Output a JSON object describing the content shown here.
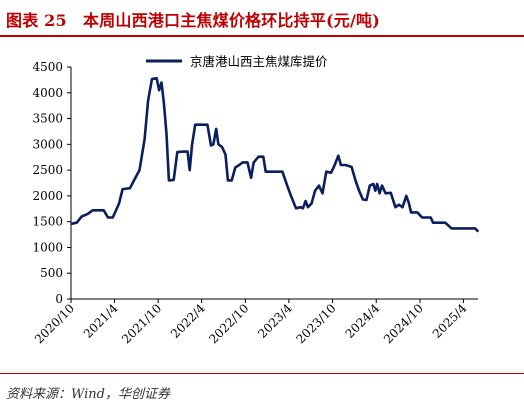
{
  "title": "图表 25　本周山西港口主焦煤价格环比持平(元/吨)",
  "source": "资料来源：Wind，华创证券",
  "colors": {
    "accent": "#c00000",
    "series": "#0b1f5e"
  },
  "chart_data": {
    "type": "line",
    "title": "本周山西港口主焦煤价格环比持平(元/吨)",
    "xlabel": "",
    "ylabel": "",
    "ylim": [
      0,
      4500
    ],
    "yticks": [
      0,
      500,
      1000,
      1500,
      2000,
      2500,
      3000,
      3500,
      4000,
      4500
    ],
    "xlim": [
      "2020-10",
      "2025-06"
    ],
    "xticks": [
      "2020/10",
      "2021/4",
      "2021/10",
      "2022/4",
      "2022/10",
      "2023/4",
      "2023/10",
      "2024/4",
      "2024/10",
      "2025/4"
    ],
    "legend_position": "top",
    "grid": false,
    "series": [
      {
        "name": "京唐港山西主焦煤库提价",
        "points": [
          [
            "2020-10-05",
            1460
          ],
          [
            "2020-10-25",
            1480
          ],
          [
            "2020-11-15",
            1600
          ],
          [
            "2020-12-10",
            1650
          ],
          [
            "2020-12-31",
            1720
          ],
          [
            "2021-02-15",
            1720
          ],
          [
            "2021-03-05",
            1580
          ],
          [
            "2021-03-25",
            1580
          ],
          [
            "2021-04-20",
            1850
          ],
          [
            "2021-05-05",
            2130
          ],
          [
            "2021-06-05",
            2150
          ],
          [
            "2021-06-25",
            2330
          ],
          [
            "2021-07-15",
            2500
          ],
          [
            "2021-08-05",
            3100
          ],
          [
            "2021-08-20",
            3850
          ],
          [
            "2021-09-05",
            4270
          ],
          [
            "2021-09-25",
            4280
          ],
          [
            "2021-10-05",
            4050
          ],
          [
            "2021-10-15",
            4200
          ],
          [
            "2021-10-25",
            3800
          ],
          [
            "2021-11-05",
            3200
          ],
          [
            "2021-11-15",
            2300
          ],
          [
            "2021-12-05",
            2310
          ],
          [
            "2021-12-20",
            2850
          ],
          [
            "2022-01-15",
            2860
          ],
          [
            "2022-02-01",
            2860
          ],
          [
            "2022-02-10",
            2500
          ],
          [
            "2022-02-20",
            3000
          ],
          [
            "2022-03-05",
            3380
          ],
          [
            "2022-04-05",
            3380
          ],
          [
            "2022-04-25",
            3380
          ],
          [
            "2022-05-10",
            2980
          ],
          [
            "2022-05-20",
            3000
          ],
          [
            "2022-06-01",
            3300
          ],
          [
            "2022-06-10",
            3000
          ],
          [
            "2022-06-25",
            2950
          ],
          [
            "2022-07-10",
            2800
          ],
          [
            "2022-07-20",
            2300
          ],
          [
            "2022-08-05",
            2300
          ],
          [
            "2022-08-20",
            2550
          ],
          [
            "2022-09-05",
            2600
          ],
          [
            "2022-09-20",
            2650
          ],
          [
            "2022-10-10",
            2650
          ],
          [
            "2022-10-25",
            2350
          ],
          [
            "2022-11-05",
            2650
          ],
          [
            "2022-11-25",
            2760
          ],
          [
            "2022-12-15",
            2760
          ],
          [
            "2022-12-25",
            2470
          ],
          [
            "2023-01-20",
            2470
          ],
          [
            "2023-02-15",
            2470
          ],
          [
            "2023-03-05",
            2470
          ],
          [
            "2023-03-25",
            2200
          ],
          [
            "2023-04-10",
            2000
          ],
          [
            "2023-05-01",
            1760
          ],
          [
            "2023-05-20",
            1780
          ],
          [
            "2023-05-30",
            1760
          ],
          [
            "2023-06-10",
            1900
          ],
          [
            "2023-06-20",
            1780
          ],
          [
            "2023-07-05",
            1850
          ],
          [
            "2023-07-20",
            2100
          ],
          [
            "2023-08-05",
            2200
          ],
          [
            "2023-08-20",
            2050
          ],
          [
            "2023-09-05",
            2470
          ],
          [
            "2023-09-25",
            2450
          ],
          [
            "2023-10-10",
            2600
          ],
          [
            "2023-10-25",
            2780
          ],
          [
            "2023-11-05",
            2600
          ],
          [
            "2023-11-25",
            2600
          ],
          [
            "2023-12-20",
            2560
          ],
          [
            "2024-01-05",
            2300
          ],
          [
            "2024-01-20",
            2100
          ],
          [
            "2024-02-05",
            1930
          ],
          [
            "2024-02-20",
            1920
          ],
          [
            "2024-03-05",
            2200
          ],
          [
            "2024-03-20",
            2230
          ],
          [
            "2024-03-28",
            2100
          ],
          [
            "2024-04-05",
            2230
          ],
          [
            "2024-04-15",
            2050
          ],
          [
            "2024-04-25",
            2200
          ],
          [
            "2024-05-10",
            2050
          ],
          [
            "2024-06-01",
            2060
          ],
          [
            "2024-06-20",
            1780
          ],
          [
            "2024-07-05",
            1830
          ],
          [
            "2024-07-20",
            1780
          ],
          [
            "2024-08-05",
            2000
          ],
          [
            "2024-08-15",
            1870
          ],
          [
            "2024-08-25",
            1680
          ],
          [
            "2024-09-20",
            1680
          ],
          [
            "2024-10-10",
            1580
          ],
          [
            "2024-11-15",
            1580
          ],
          [
            "2024-11-25",
            1480
          ],
          [
            "2025-01-15",
            1480
          ],
          [
            "2025-02-10",
            1370
          ],
          [
            "2025-05-20",
            1370
          ],
          [
            "2025-05-30",
            1320
          ]
        ]
      }
    ]
  }
}
